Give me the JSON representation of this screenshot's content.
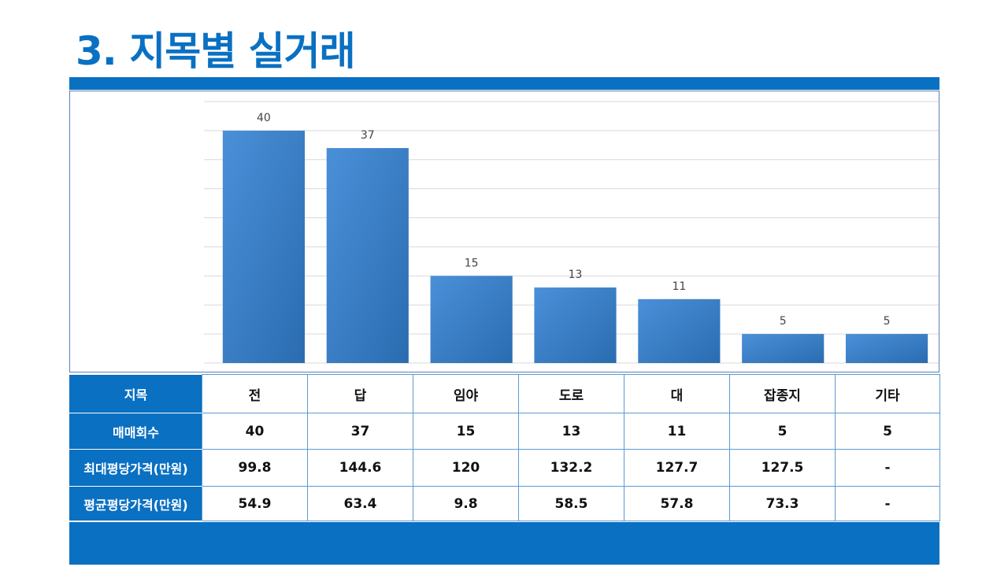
{
  "title": "3. 지목별 실거래",
  "colors": {
    "accent": "#0a70c2",
    "bar_light": "#4a90d9",
    "bar_dark": "#2b6cb0",
    "grid": "#d9d9d9"
  },
  "chart_data": {
    "type": "bar",
    "categories": [
      "전",
      "답",
      "임야",
      "도로",
      "대",
      "잡종지",
      "기타"
    ],
    "values": [
      40,
      37,
      15,
      13,
      11,
      5,
      5
    ],
    "ylim": [
      0,
      45
    ],
    "grid": true,
    "data_labels": true
  },
  "table": {
    "header_label": "지목",
    "rows": [
      {
        "label": "매매회수",
        "values": [
          "40",
          "37",
          "15",
          "13",
          "11",
          "5",
          "5"
        ]
      },
      {
        "label": "최대평당가격(만원)",
        "values": [
          "99.8",
          "144.6",
          "120",
          "132.2",
          "127.7",
          "127.5",
          "-"
        ]
      },
      {
        "label": "평균평당가격(만원)",
        "values": [
          "54.9",
          "63.4",
          "9.8",
          "58.5",
          "57.8",
          "73.3",
          "-"
        ]
      }
    ]
  }
}
